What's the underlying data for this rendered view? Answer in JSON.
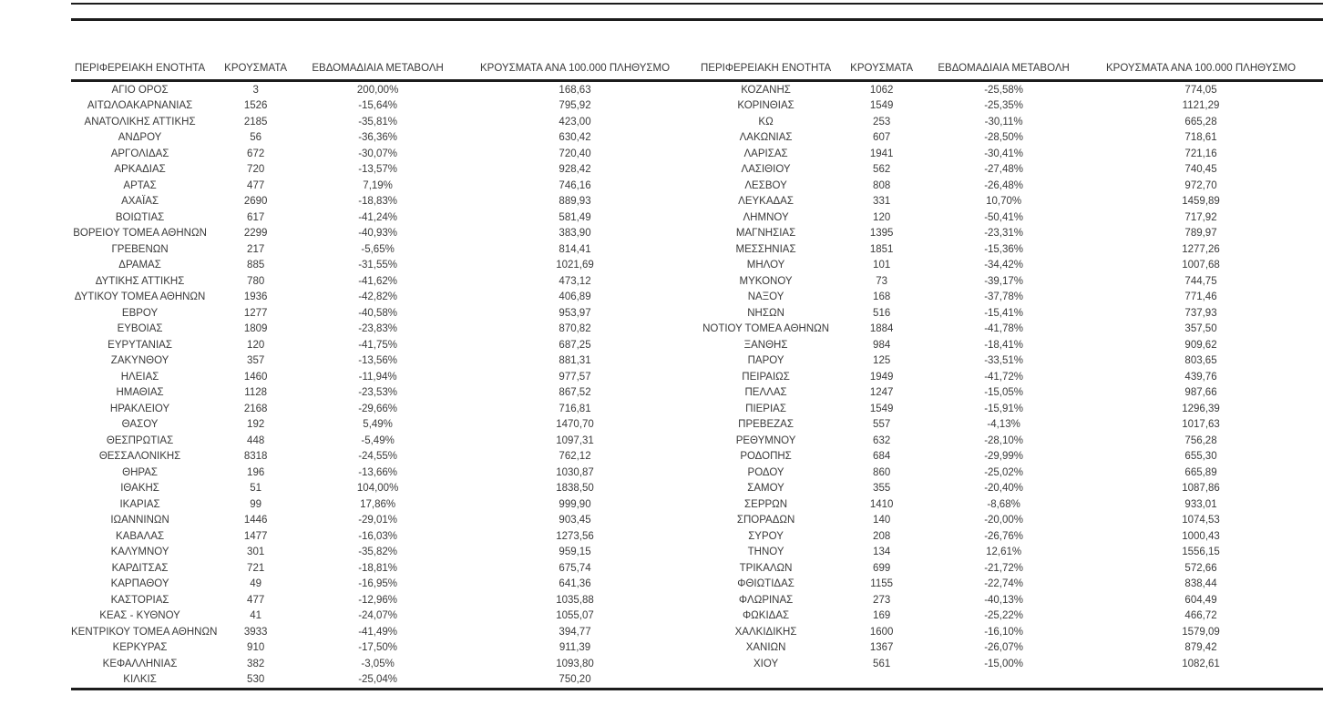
{
  "colors": {
    "text": "#3a3a3a",
    "rule": "#1c1c1c",
    "background": "#ffffff"
  },
  "table": {
    "headers": [
      "ΠΕΡΙΦΕΡΕΙΑΚΗ ΕΝΟΤΗΤΑ",
      "ΚΡΟΥΣΜΑΤΑ",
      "ΕΒΔΟΜΑΔΙΑΙΑ ΜΕΤΑΒΟΛΗ",
      "ΚΡΟΥΣΜΑΤΑ ΑΝΑ 100.000 ΠΛΗΘΥΣΜΟ"
    ],
    "left_rows": [
      [
        "ΑΓΙΟ ΟΡΟΣ",
        "3",
        "200,00%",
        "168,63"
      ],
      [
        "ΑΙΤΩΛΟΑΚΑΡΝΑΝΙΑΣ",
        "1526",
        "-15,64%",
        "795,92"
      ],
      [
        "ΑΝΑΤΟΛΙΚΗΣ ΑΤΤΙΚΗΣ",
        "2185",
        "-35,81%",
        "423,00"
      ],
      [
        "ΑΝΔΡΟΥ",
        "56",
        "-36,36%",
        "630,42"
      ],
      [
        "ΑΡΓΟΛΙΔΑΣ",
        "672",
        "-30,07%",
        "720,40"
      ],
      [
        "ΑΡΚΑΔΙΑΣ",
        "720",
        "-13,57%",
        "928,42"
      ],
      [
        "ΑΡΤΑΣ",
        "477",
        "7,19%",
        "746,16"
      ],
      [
        "ΑΧΑΪΑΣ",
        "2690",
        "-18,83%",
        "889,93"
      ],
      [
        "ΒΟΙΩΤΙΑΣ",
        "617",
        "-41,24%",
        "581,49"
      ],
      [
        "ΒΟΡΕΙΟΥ ΤΟΜΕΑ ΑΘΗΝΩΝ",
        "2299",
        "-40,93%",
        "383,90"
      ],
      [
        "ΓΡΕΒΕΝΩΝ",
        "217",
        "-5,65%",
        "814,41"
      ],
      [
        "ΔΡΑΜΑΣ",
        "885",
        "-31,55%",
        "1021,69"
      ],
      [
        "ΔΥΤΙΚΗΣ ΑΤΤΙΚΗΣ",
        "780",
        "-41,62%",
        "473,12"
      ],
      [
        "ΔΥΤΙΚΟΥ ΤΟΜΕΑ ΑΘΗΝΩΝ",
        "1936",
        "-42,82%",
        "406,89"
      ],
      [
        "ΕΒΡΟΥ",
        "1277",
        "-40,58%",
        "953,97"
      ],
      [
        "ΕΥΒΟΙΑΣ",
        "1809",
        "-23,83%",
        "870,82"
      ],
      [
        "ΕΥΡΥΤΑΝΙΑΣ",
        "120",
        "-41,75%",
        "687,25"
      ],
      [
        "ΖΑΚΥΝΘΟΥ",
        "357",
        "-13,56%",
        "881,31"
      ],
      [
        "ΗΛΕΙΑΣ",
        "1460",
        "-11,94%",
        "977,57"
      ],
      [
        "ΗΜΑΘΙΑΣ",
        "1128",
        "-23,53%",
        "867,52"
      ],
      [
        "ΗΡΑΚΛΕΙΟΥ",
        "2168",
        "-29,66%",
        "716,81"
      ],
      [
        "ΘΑΣΟΥ",
        "192",
        "5,49%",
        "1470,70"
      ],
      [
        "ΘΕΣΠΡΩΤΙΑΣ",
        "448",
        "-5,49%",
        "1097,31"
      ],
      [
        "ΘΕΣΣΑΛΟΝΙΚΗΣ",
        "8318",
        "-24,55%",
        "762,12"
      ],
      [
        "ΘΗΡΑΣ",
        "196",
        "-13,66%",
        "1030,87"
      ],
      [
        "ΙΘΑΚΗΣ",
        "51",
        "104,00%",
        "1838,50"
      ],
      [
        "ΙΚΑΡΙΑΣ",
        "99",
        "17,86%",
        "999,90"
      ],
      [
        "ΙΩΑΝΝΙΝΩΝ",
        "1446",
        "-29,01%",
        "903,45"
      ],
      [
        "ΚΑΒΑΛΑΣ",
        "1477",
        "-16,03%",
        "1273,56"
      ],
      [
        "ΚΑΛΥΜΝΟΥ",
        "301",
        "-35,82%",
        "959,15"
      ],
      [
        "ΚΑΡΔΙΤΣΑΣ",
        "721",
        "-18,81%",
        "675,74"
      ],
      [
        "ΚΑΡΠΑΘΟΥ",
        "49",
        "-16,95%",
        "641,36"
      ],
      [
        "ΚΑΣΤΟΡΙΑΣ",
        "477",
        "-12,96%",
        "1035,88"
      ],
      [
        "ΚΕΑΣ - ΚΥΘΝΟΥ",
        "41",
        "-24,07%",
        "1055,07"
      ],
      [
        "ΚΕΝΤΡΙΚΟΥ ΤΟΜΕΑ ΑΘΗΝΩΝ",
        "3933",
        "-41,49%",
        "394,77"
      ],
      [
        "ΚΕΡΚΥΡΑΣ",
        "910",
        "-17,50%",
        "911,39"
      ],
      [
        "ΚΕΦΑΛΛΗΝΙΑΣ",
        "382",
        "-3,05%",
        "1093,80"
      ],
      [
        "ΚΙΛΚΙΣ",
        "530",
        "-25,04%",
        "750,20"
      ]
    ],
    "right_rows": [
      [
        "ΚΟΖΑΝΗΣ",
        "1062",
        "-25,58%",
        "774,05"
      ],
      [
        "ΚΟΡΙΝΘΙΑΣ",
        "1549",
        "-25,35%",
        "1121,29"
      ],
      [
        "ΚΩ",
        "253",
        "-30,11%",
        "665,28"
      ],
      [
        "ΛΑΚΩΝΙΑΣ",
        "607",
        "-28,50%",
        "718,61"
      ],
      [
        "ΛΑΡΙΣΑΣ",
        "1941",
        "-30,41%",
        "721,16"
      ],
      [
        "ΛΑΣΙΘΙΟΥ",
        "562",
        "-27,48%",
        "740,45"
      ],
      [
        "ΛΕΣΒΟΥ",
        "808",
        "-26,48%",
        "972,70"
      ],
      [
        "ΛΕΥΚΑΔΑΣ",
        "331",
        "10,70%",
        "1459,89"
      ],
      [
        "ΛΗΜΝΟΥ",
        "120",
        "-50,41%",
        "717,92"
      ],
      [
        "ΜΑΓΝΗΣΙΑΣ",
        "1395",
        "-23,31%",
        "789,97"
      ],
      [
        "ΜΕΣΣΗΝΙΑΣ",
        "1851",
        "-15,36%",
        "1277,26"
      ],
      [
        "ΜΗΛΟΥ",
        "101",
        "-34,42%",
        "1007,68"
      ],
      [
        "ΜΥΚΟΝΟΥ",
        "73",
        "-39,17%",
        "744,75"
      ],
      [
        "ΝΑΞΟΥ",
        "168",
        "-37,78%",
        "771,46"
      ],
      [
        "ΝΗΣΩΝ",
        "516",
        "-15,41%",
        "737,93"
      ],
      [
        "ΝΟΤΙΟΥ ΤΟΜΕΑ ΑΘΗΝΩΝ",
        "1884",
        "-41,78%",
        "357,50"
      ],
      [
        "ΞΑΝΘΗΣ",
        "984",
        "-18,41%",
        "909,62"
      ],
      [
        "ΠΑΡΟΥ",
        "125",
        "-33,51%",
        "803,65"
      ],
      [
        "ΠΕΙΡΑΙΩΣ",
        "1949",
        "-41,72%",
        "439,76"
      ],
      [
        "ΠΕΛΛΑΣ",
        "1247",
        "-15,05%",
        "987,66"
      ],
      [
        "ΠΙΕΡΙΑΣ",
        "1549",
        "-15,91%",
        "1296,39"
      ],
      [
        "ΠΡΕΒΕΖΑΣ",
        "557",
        "-4,13%",
        "1017,63"
      ],
      [
        "ΡΕΘΥΜΝΟΥ",
        "632",
        "-28,10%",
        "756,28"
      ],
      [
        "ΡΟΔΟΠΗΣ",
        "684",
        "-29,99%",
        "655,30"
      ],
      [
        "ΡΟΔΟΥ",
        "860",
        "-25,02%",
        "665,89"
      ],
      [
        "ΣΑΜΟΥ",
        "355",
        "-20,40%",
        "1087,86"
      ],
      [
        "ΣΕΡΡΩΝ",
        "1410",
        "-8,68%",
        "933,01"
      ],
      [
        "ΣΠΟΡΑΔΩΝ",
        "140",
        "-20,00%",
        "1074,53"
      ],
      [
        "ΣΥΡΟΥ",
        "208",
        "-26,76%",
        "1000,43"
      ],
      [
        "ΤΗΝΟΥ",
        "134",
        "12,61%",
        "1556,15"
      ],
      [
        "ΤΡΙΚΑΛΩΝ",
        "699",
        "-21,72%",
        "572,66"
      ],
      [
        "ΦΘΙΩΤΙΔΑΣ",
        "1155",
        "-22,74%",
        "838,44"
      ],
      [
        "ΦΛΩΡΙΝΑΣ",
        "273",
        "-40,13%",
        "604,49"
      ],
      [
        "ΦΩΚΙΔΑΣ",
        "169",
        "-25,22%",
        "466,72"
      ],
      [
        "ΧΑΛΚΙΔΙΚΗΣ",
        "1600",
        "-16,10%",
        "1579,09"
      ],
      [
        "ΧΑΝΙΩΝ",
        "1367",
        "-26,07%",
        "879,42"
      ],
      [
        "ΧΙΟΥ",
        "561",
        "-15,00%",
        "1082,61"
      ]
    ]
  }
}
